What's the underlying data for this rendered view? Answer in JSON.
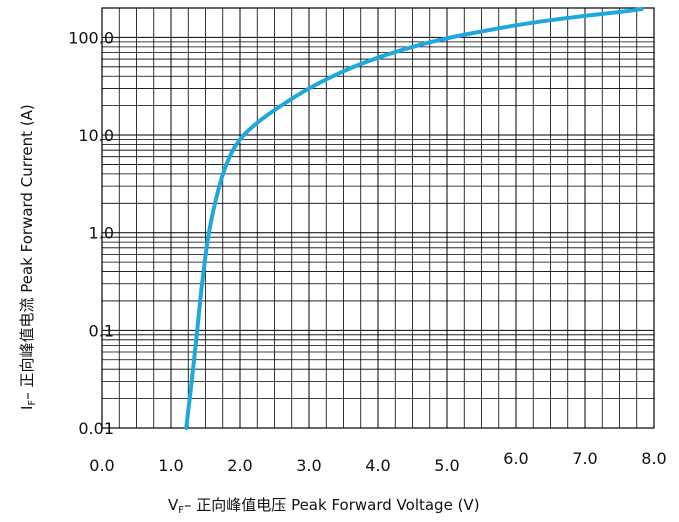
{
  "chart_data": {
    "type": "line",
    "title": "",
    "xlabel_prefix": "V",
    "xlabel_sub": "F",
    "xlabel_rest": "– 正向峰值电压 Peak Forward Voltage (V)",
    "ylabel_prefix": "I",
    "ylabel_sub": "F",
    "ylabel_rest": "– 正向峰值电流 Peak Forward Current (A)",
    "x_scale": "linear",
    "y_scale": "log",
    "xlim": [
      0,
      8
    ],
    "ylim": [
      0.01,
      200
    ],
    "grid": true,
    "x_ticks": [
      "0.0",
      "1.0",
      "2.0",
      "3.0",
      "4.0",
      "5.0",
      "6.0",
      "7.0",
      "8.0"
    ],
    "y_ticks": [
      "0.01",
      "0.1",
      "1.0",
      "10.0",
      "100.0"
    ],
    "series": [
      {
        "color": "#1ea8dc",
        "x": [
          1.22,
          1.3,
          1.38,
          1.45,
          1.55,
          1.7,
          1.85,
          2.0,
          2.2,
          2.5,
          3.0,
          3.5,
          4.0,
          4.5,
          5.0,
          5.5,
          6.0,
          6.5,
          7.0,
          7.5,
          7.82
        ],
        "y": [
          0.01,
          0.03,
          0.1,
          0.3,
          1.0,
          3.0,
          6.0,
          9.0,
          12.5,
          18.0,
          30.0,
          45.0,
          62.0,
          80.0,
          98.0,
          115.0,
          133.0,
          150.0,
          166.0,
          182.0,
          195.0
        ]
      }
    ]
  }
}
